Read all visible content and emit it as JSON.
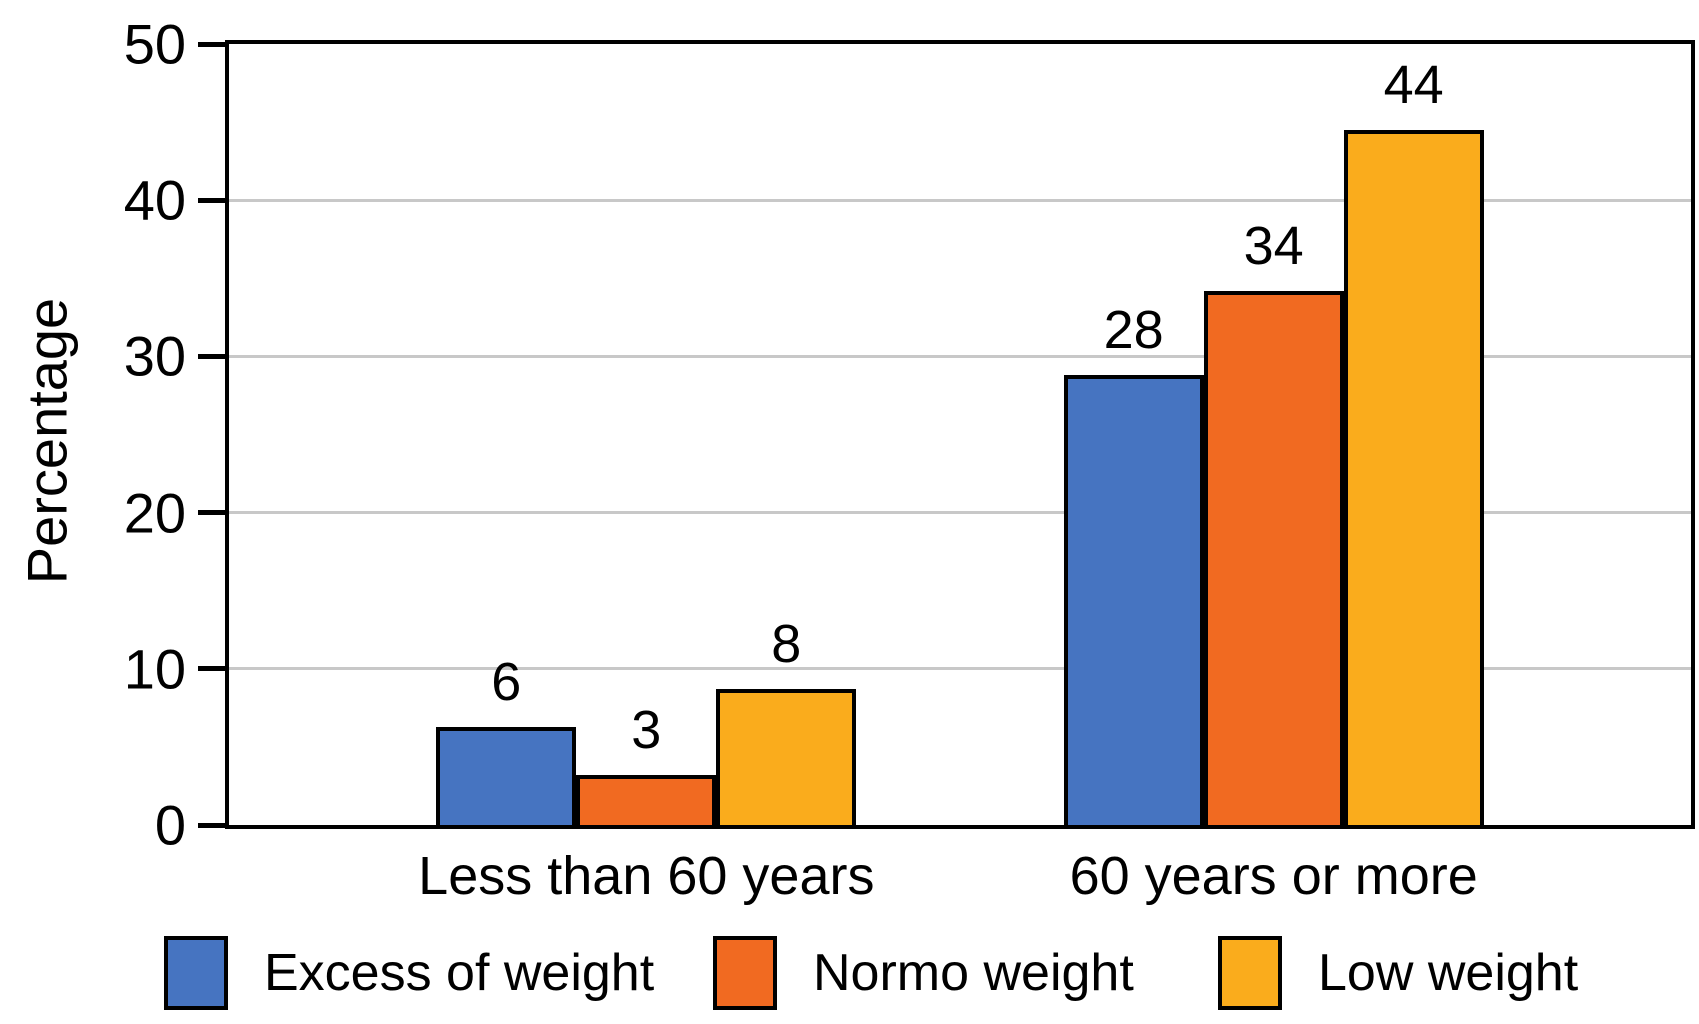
{
  "chart_data": {
    "type": "bar",
    "title": "",
    "ylabel": "Percentage",
    "xlabel": "",
    "categories": [
      "Less than 60 years",
      "60 years or more"
    ],
    "series": [
      {
        "name": "Excess of weight",
        "color": "#4674C1",
        "values": [
          6,
          28
        ],
        "visual_values": [
          6.3,
          28.8
        ]
      },
      {
        "name": "Normo weight",
        "color": "#F16A21",
        "values": [
          3,
          34
        ],
        "visual_values": [
          3.2,
          34.2
        ]
      },
      {
        "name": "Low weight",
        "color": "#FAAC1C",
        "values": [
          8,
          44
        ],
        "visual_values": [
          8.7,
          44.5
        ]
      }
    ],
    "ylim": [
      0,
      50
    ],
    "yticks": [
      0,
      10,
      20,
      30,
      40,
      50
    ],
    "grid": true,
    "gridline_color": "#c8c8c8",
    "axis_color": "#000000",
    "bar_outline_color": "#000000",
    "background_color": "#ffffff",
    "legend_position": "bottom",
    "data_labels": true
  }
}
